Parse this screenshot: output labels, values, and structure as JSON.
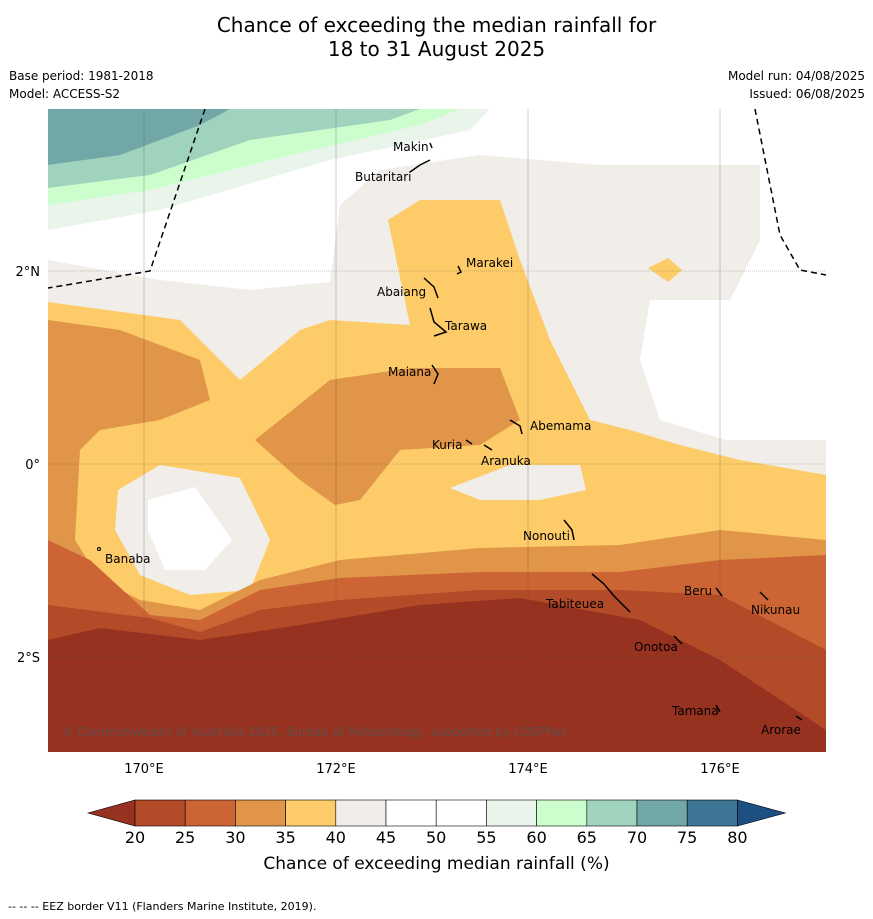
{
  "header": {
    "title_line1": "Chance of exceeding the median rainfall for",
    "title_line2": "18 to 31 August 2025",
    "base_period": "Base period: 1981-2018",
    "model": "Model: ACCESS-S2",
    "model_run": "Model run: 04/08/2025",
    "issued": "Issued: 06/08/2025"
  },
  "map": {
    "lat_labels": [
      "2°N",
      "0°",
      "2°S"
    ],
    "lon_labels": [
      "170°E",
      "172°E",
      "174°E",
      "176°E"
    ],
    "copyright": "© Commonwealth of Australia 2025, Bureau of Meteorology, supported by COSPPac",
    "places": [
      "Makin",
      "Butaritari",
      "Marakei",
      "Abaiang",
      "Tarawa",
      "Maiana",
      "Abemama",
      "Kuria",
      "Aranuka",
      "Banaba",
      "Nonouti",
      "Tabiteuea",
      "Beru",
      "Nikunau",
      "Onotoa",
      "Tamana",
      "Arorae"
    ]
  },
  "colorbar": {
    "ticks": [
      "20",
      "25",
      "30",
      "35",
      "40",
      "45",
      "50",
      "55",
      "60",
      "65",
      "70",
      "75",
      "80"
    ],
    "label": "Chance of exceeding median rainfall (%)",
    "colors": [
      "#983220",
      "#b34a28",
      "#cc6533",
      "#e09548",
      "#fdcb68",
      "#f1ede8",
      "#ffffff",
      "#ffffff",
      "#e9f4ea",
      "#ccfdcc",
      "#9fd3bd",
      "#72a7a7",
      "#3f7696",
      "#1e4f82"
    ]
  },
  "footer": {
    "eez_note": "--  --  -- EEZ border V11 (Flanders Marine Institute, 2019)."
  }
}
